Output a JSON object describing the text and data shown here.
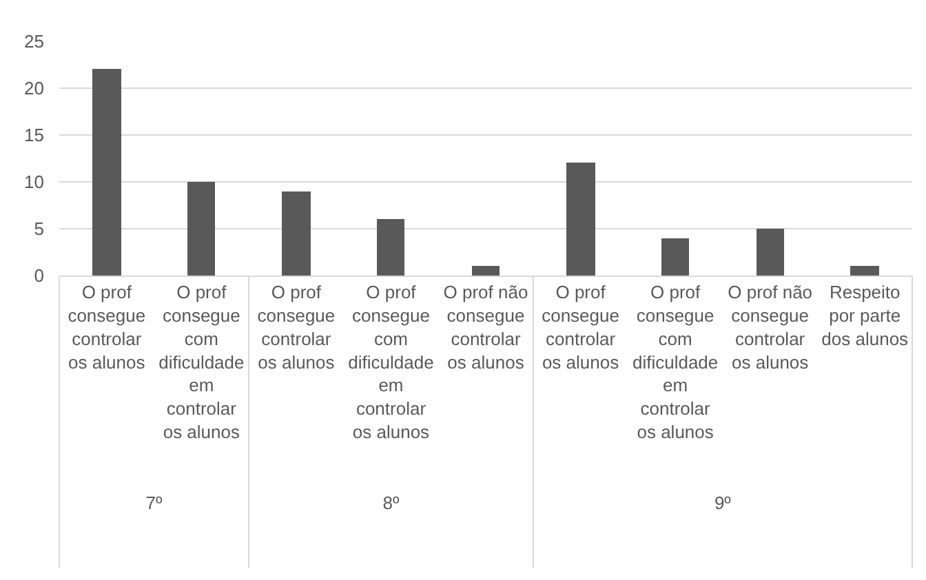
{
  "chart_data": [
    {
      "type": "bar",
      "xlabel": "7º",
      "categories": [
        "O prof consegue controlar os alunos",
        "O prof consegue com dificuldade em controlar os alunos"
      ],
      "values": [
        22,
        10
      ],
      "color": "#595959",
      "ylim": [
        0,
        25
      ],
      "yticks": [
        0,
        5,
        10,
        15,
        20,
        25
      ],
      "grid": "y"
    },
    {
      "type": "bar",
      "xlabel": "8º",
      "categories": [
        "O prof consegue controlar os alunos",
        "O prof consegue com dificuldade em controlar os alunos",
        "O prof não consegue controlar os alunos"
      ],
      "values": [
        9,
        6,
        1
      ],
      "color": "#595959",
      "ylim": [
        0,
        25
      ],
      "yticks": [
        0,
        5,
        10,
        15,
        20,
        25
      ],
      "grid": "y",
      "tick_labels": "x"
    },
    {
      "type": "bar",
      "xlabel": "9º",
      "categories": [
        "O prof consegue controlar os alunos",
        "O prof consegue com dificuldade em controlar os alunos",
        "O prof não consegue controlar os alunos",
        "Respeito por parte dos alunos"
      ],
      "values": [
        12,
        4,
        5,
        1
      ],
      "color": "#595959",
      "ylim": [
        0,
        25
      ],
      "yticks": [
        0,
        5,
        10,
        15,
        20,
        25
      ],
      "grid": "y",
      "tick_labels": "x"
    }
  ]
}
